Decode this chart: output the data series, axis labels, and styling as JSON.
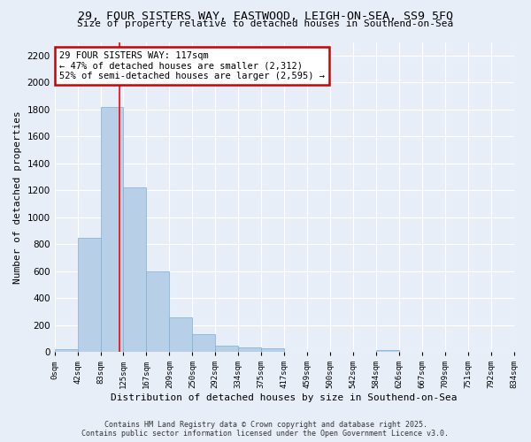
{
  "title_line1": "29, FOUR SISTERS WAY, EASTWOOD, LEIGH-ON-SEA, SS9 5FQ",
  "title_line2": "Size of property relative to detached houses in Southend-on-Sea",
  "xlabel": "Distribution of detached houses by size in Southend-on-Sea",
  "ylabel": "Number of detached properties",
  "bin_labels": [
    "0sqm",
    "42sqm",
    "83sqm",
    "125sqm",
    "167sqm",
    "209sqm",
    "250sqm",
    "292sqm",
    "334sqm",
    "375sqm",
    "417sqm",
    "459sqm",
    "500sqm",
    "542sqm",
    "584sqm",
    "626sqm",
    "667sqm",
    "709sqm",
    "751sqm",
    "792sqm",
    "834sqm"
  ],
  "bar_values": [
    20,
    850,
    1820,
    1220,
    595,
    258,
    130,
    45,
    35,
    25,
    0,
    0,
    0,
    0,
    15,
    0,
    0,
    0,
    0,
    0
  ],
  "bar_color": "#b8cfe8",
  "bar_edgecolor": "#7aafd4",
  "annotation_text": "29 FOUR SISTERS WAY: 117sqm\n← 47% of detached houses are smaller (2,312)\n52% of semi-detached houses are larger (2,595) →",
  "annotation_box_color": "#ffffff",
  "annotation_box_edgecolor": "#cc0000",
  "ylim": [
    0,
    2300
  ],
  "yticks": [
    0,
    200,
    400,
    600,
    800,
    1000,
    1200,
    1400,
    1600,
    1800,
    2000,
    2200
  ],
  "background_color": "#e8eef8",
  "grid_color": "#ffffff",
  "footer_line1": "Contains HM Land Registry data © Crown copyright and database right 2025.",
  "footer_line2": "Contains public sector information licensed under the Open Government Licence v3.0."
}
